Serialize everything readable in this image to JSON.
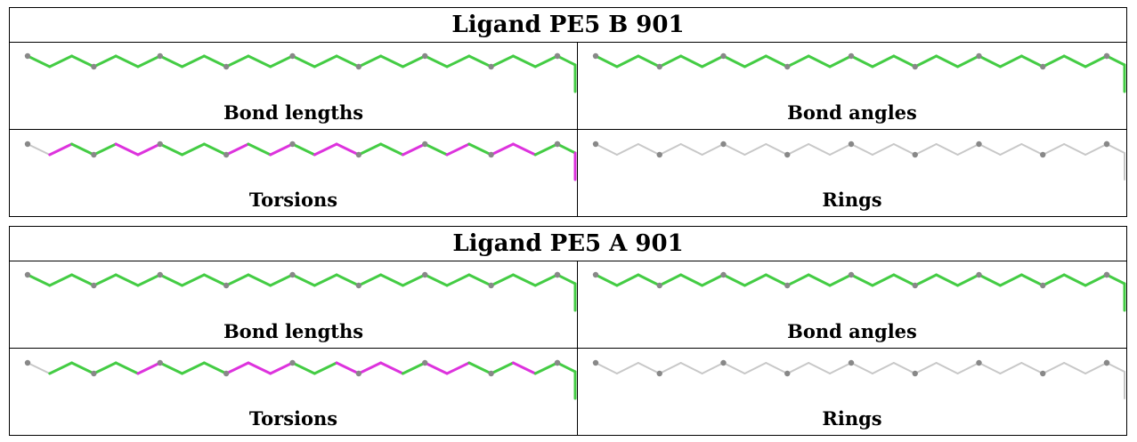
{
  "colors": {
    "ok": "#44cc44",
    "outlier": "#dd33dd",
    "none": "#c8c8c8",
    "atom": "#888888"
  },
  "tables": [
    {
      "title": "Ligand PE5 B 901",
      "panels": [
        {
          "label": "Bond lengths",
          "bonds": "gggggggggggggggggggggggggggg"
        },
        {
          "label": "Bond angles",
          "bonds": "gggggggggggggggggggggggggggg"
        },
        {
          "label": "Torsions",
          "bonds": "rmggmmgggmgmgmmggmgmgmmggm"
        },
        {
          "label": "Rings",
          "bonds": "rrrrrrrrrrrrrrrrrrrrrrrrrrrr"
        }
      ]
    },
    {
      "title": "Ligand PE5 A 901",
      "panels": [
        {
          "label": "Bond lengths",
          "bonds": "gggggggggggggggggggggggggggg"
        },
        {
          "label": "Bond angles",
          "bonds": "gggggggggggggggggggggggggggg"
        },
        {
          "label": "Torsions",
          "bonds": "rggggmgggmmmggmmmgmmggmggg"
        },
        {
          "label": "Rings",
          "bonds": "rrrrrrrrrrrrrrrrrrrrrrrrrrrr"
        }
      ]
    }
  ]
}
